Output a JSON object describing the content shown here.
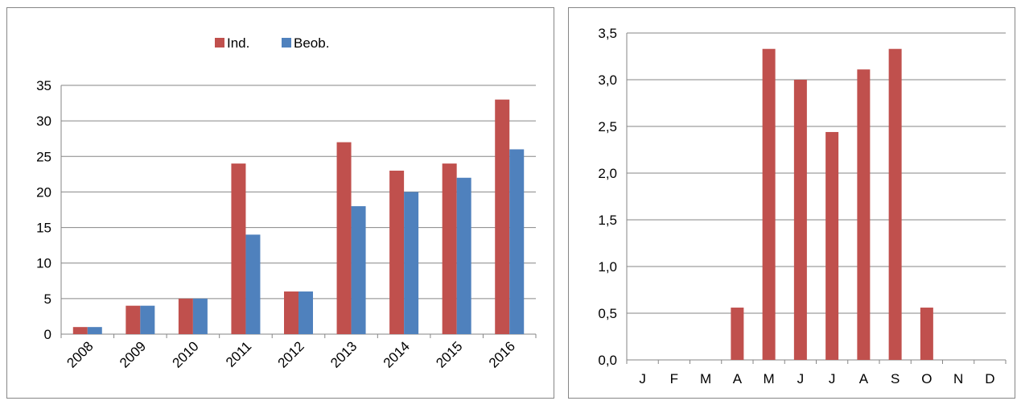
{
  "colors": {
    "ind": "#C0504D",
    "beob": "#4F81BD",
    "grid": "#868686"
  },
  "chart_data": [
    {
      "type": "bar",
      "categories": [
        "2008",
        "2009",
        "2010",
        "2011",
        "2012",
        "2013",
        "2014",
        "2015",
        "2016"
      ],
      "series": [
        {
          "name": "Ind.",
          "values": [
            1,
            4,
            5,
            24,
            6,
            27,
            23,
            24,
            33
          ]
        },
        {
          "name": "Beob.",
          "values": [
            1,
            4,
            5,
            14,
            6,
            18,
            20,
            22,
            26
          ]
        }
      ],
      "yticks": [
        "0",
        "5",
        "10",
        "15",
        "20",
        "25",
        "30",
        "35"
      ],
      "ylim": [
        0,
        35
      ],
      "grid": true,
      "legend": "top-center",
      "xtick_rotation": -45
    },
    {
      "type": "bar",
      "categories": [
        "J",
        "F",
        "M",
        "A",
        "M",
        "J",
        "J",
        "A",
        "S",
        "O",
        "N",
        "D"
      ],
      "series": [
        {
          "values": [
            0,
            0,
            0,
            0.56,
            3.33,
            3.0,
            2.44,
            3.11,
            3.33,
            0.56,
            0,
            0
          ]
        }
      ],
      "yticks": [
        "0,0",
        "0,5",
        "1,0",
        "1,5",
        "2,0",
        "2,5",
        "3,0",
        "3,5"
      ],
      "ylim": [
        0,
        3.5
      ],
      "grid": true,
      "legend": "none"
    }
  ]
}
